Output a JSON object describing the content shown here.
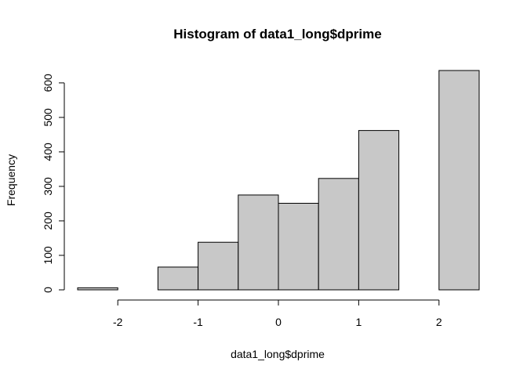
{
  "chart_data": {
    "type": "bar",
    "title": "Histogram of data1_long$dprime",
    "xlabel": "data1_long$dprime",
    "ylabel": "Frequency",
    "bins": [
      {
        "start": -2.5,
        "end": -2.0,
        "count": 6
      },
      {
        "start": -2.0,
        "end": -1.5,
        "count": 0
      },
      {
        "start": -1.5,
        "end": -1.0,
        "count": 66
      },
      {
        "start": -1.0,
        "end": -0.5,
        "count": 138
      },
      {
        "start": -0.5,
        "end": 0.0,
        "count": 275
      },
      {
        "start": 0.0,
        "end": 0.5,
        "count": 251
      },
      {
        "start": 0.5,
        "end": 1.0,
        "count": 323
      },
      {
        "start": 1.0,
        "end": 1.5,
        "count": 462
      },
      {
        "start": 1.5,
        "end": 2.0,
        "count": 0
      },
      {
        "start": 2.0,
        "end": 2.5,
        "count": 636
      }
    ],
    "xticks": [
      -2,
      -1,
      0,
      1,
      2
    ],
    "yticks": [
      0,
      100,
      200,
      300,
      400,
      500,
      600
    ],
    "xlim": [
      -2.5,
      2.5
    ],
    "ylim": [
      0,
      636
    ],
    "grid": false,
    "colors": {
      "bar_fill": "#c8c8c8",
      "bar_stroke": "#000000"
    }
  }
}
